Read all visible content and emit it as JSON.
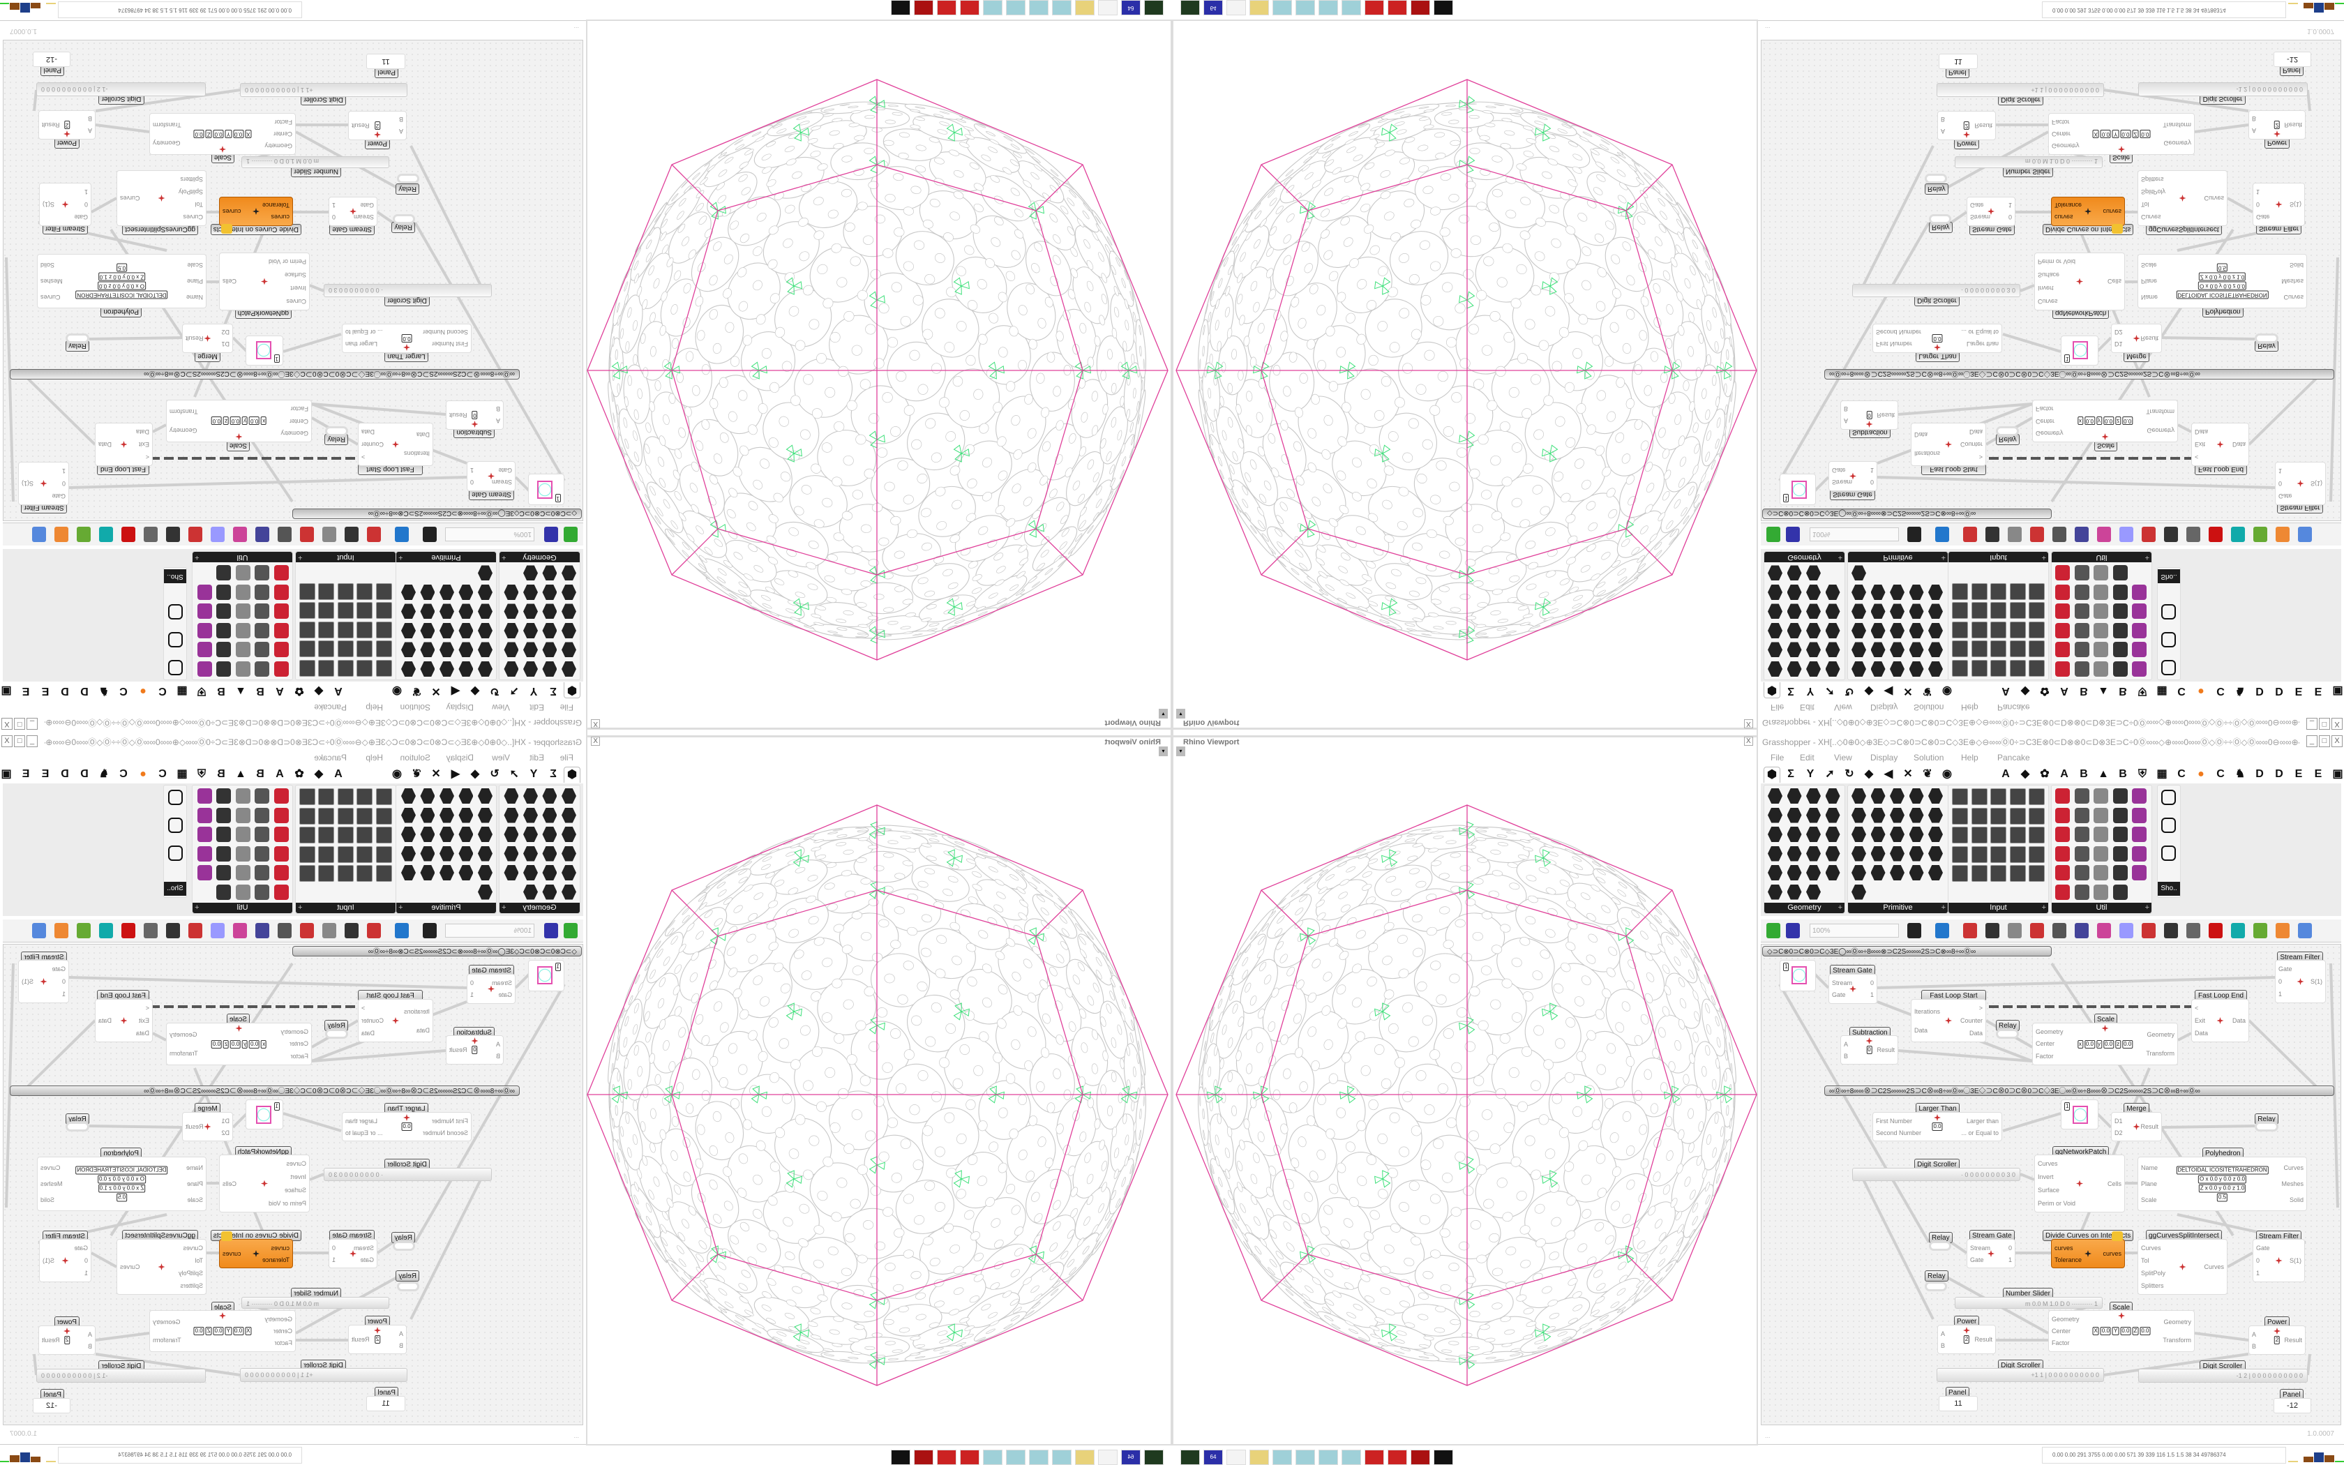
{
  "viewport": {
    "title": "Rhino Viewport",
    "close": "X",
    "dropdown": "▾"
  },
  "colors": {
    "polyhedron_edges": "#e0409a",
    "packing_circles": "#c8c8c8",
    "packing_gaps": "#3ee07a",
    "selected_component": "#f39a2e",
    "wires": "#cfcfcf"
  },
  "taskbar": {
    "icons": [
      {
        "name": "monitor-app-icon",
        "color": "#1f3a1f",
        "label": ""
      },
      {
        "name": "floppy-64-icon",
        "color": "#2b2fa8",
        "label": "64"
      },
      {
        "name": "blank-app-icon",
        "color": "#f4f4f4",
        "label": ""
      },
      {
        "name": "folder-icon",
        "color": "#e8d27a",
        "label": ""
      },
      {
        "name": "notepad-icon",
        "color": "#9fd0d8",
        "label": ""
      },
      {
        "name": "notepad-icon",
        "color": "#9fd0d8",
        "label": ""
      },
      {
        "name": "notepad-icon",
        "color": "#9fd0d8",
        "label": ""
      },
      {
        "name": "notepad-icon",
        "color": "#9fd0d8",
        "label": ""
      },
      {
        "name": "red-gear-icon",
        "color": "#cc2222",
        "label": ""
      },
      {
        "name": "red-gear-icon",
        "color": "#cc2222",
        "label": ""
      },
      {
        "name": "red-sys-icon",
        "color": "#aa1111",
        "label": ""
      },
      {
        "name": "badge-icon",
        "color": "#111111",
        "label": ""
      }
    ]
  },
  "grasshopper": {
    "title": "Grasshopper - XH[..◇0⊕0◇⊕3E◇⊃C⊗0⊃C⊗0⊃C◇3E⊕◇⊖∞∞Ⓞ0÷⊃C3E⊗0⊂D⊗⊗0⊂D⊗3E⊃C÷0Ⓞ∞∞◇⊕∞∞0∞∞Ⓞ◇Ⓞ÷÷Ⓞ◇Ⓞ∞∞0⊖∞∞⊕◇⊖∞∞Ⓞ0÷⊃C3E⊗0⊂D⊗⊂D..",
    "window_buttons": [
      "_",
      "□",
      "X"
    ],
    "menu": [
      "File",
      "Edit",
      "View",
      "Display",
      "Solution",
      "Help",
      "Pancake"
    ],
    "tabs": [
      "⬢",
      "Σ",
      "Y",
      "➚",
      "↻",
      "◆",
      "◀",
      "✕",
      "❦",
      "◉",
      "A",
      "◆",
      "✿",
      "A",
      "B",
      "▲",
      "B",
      "⛨",
      "▦",
      "C",
      "●",
      "C",
      "♞",
      "D",
      "D",
      "E",
      "E",
      "▣"
    ],
    "ribbon": [
      {
        "label": "Geometry",
        "icons": [
          "point",
          "line",
          "vector",
          "spiral",
          "cross",
          "plane",
          "box",
          "field",
          "arrow",
          "rhombus",
          "abc",
          "wave",
          "circle",
          "cube",
          "lock",
          "cloud",
          "hook",
          "diamond",
          "map",
          "gear",
          "ring",
          "mesh",
          "magnet"
        ]
      },
      {
        "label": "Primitive",
        "icons": [
          "drop",
          "bug",
          "grid",
          "curve",
          "path",
          "star",
          "fan",
          "clock",
          "doc",
          "sync",
          "scissor",
          "uc",
          "hatch",
          "lock",
          "seven",
          "hash",
          "tree",
          "circle",
          "zero-one",
          "hash",
          "cj",
          "file",
          "A",
          "ID",
          "sphere",
          "wave"
        ]
      },
      {
        "label": "Input",
        "icons": [
          "import",
          "square",
          "prism",
          "3dm",
          "co",
          "swatch",
          "gumball",
          "t-brush",
          "xyz",
          "toggle",
          "gradient",
          "colorwheel",
          "img",
          "sphere",
          "checker",
          "graph",
          "pdb",
          "spark",
          "calendar",
          "target",
          "shp",
          "list",
          "clock",
          "rainbow",
          "id-tag"
        ]
      },
      {
        "label": "Util",
        "icons": [
          "cherry",
          "magnet",
          "arrow",
          "cj",
          "A",
          "play",
          "rec",
          "search",
          "spiral",
          "flask",
          "axes",
          "pencil",
          "compass",
          "seven",
          "flask",
          "tree",
          "y-box",
          "egg",
          "key",
          "fx",
          "blob",
          "swirl",
          "pr",
          "zero-one",
          "palette",
          "abc",
          "arrow-right",
          "gauge",
          "x"
        ]
      }
    ],
    "shortcut_label": "Sho..",
    "toolbar": {
      "zoom": "100%",
      "icons": [
        "open-file-icon",
        "save-icon",
        "zoom-extents-icon",
        "preview-eye-icon",
        "brush-icon",
        "clip-icon",
        "email-icon",
        "gha-icon",
        "display-icon",
        "search-icon",
        "package-icon",
        "bulb-icon",
        "wires-icon",
        "bell-icon",
        "capsule-icon",
        "red-shape-icon",
        "teal-icon",
        "green-icon",
        "orange-sphere-icon",
        "blue-sphere-icon"
      ]
    },
    "groups": [
      "◇⊃C⊗0⊃C⊗0⊃C◇3E◯∞Ⓞ∞÷8∞∞⊗⊃C2S∞∞∞2S⊃C⊗∞8÷∞Ⓞ∞",
      "∞Ⓞ∞÷8∞∞⊗⊃C2S∞∞∞2S⊃C⊗∞8÷∞Ⓞ∞◯3E◇⊃C⊗0⊃C⊗0⊃C◇3E◯∞Ⓞ∞÷8∞∞⊗⊃C2S∞∞∞2S⊃C⊗∞8÷∞Ⓞ∞"
    ],
    "components": [
      {
        "title": "",
        "kind": "swatch",
        "value": "1"
      },
      {
        "title": "Stream Gate",
        "inputs": [
          "Stream",
          "Gate"
        ],
        "outputs": [
          "0",
          "1"
        ]
      },
      {
        "title": "Fast Loop Start",
        "inputs": [
          "Iterations",
          "Data"
        ],
        "outputs": [
          ">",
          "Counter",
          "Data"
        ]
      },
      {
        "title": "Relay",
        "kind": "relay"
      },
      {
        "title": "Subtraction",
        "inputs": [
          "A",
          "B"
        ],
        "outputs": [
          "Result"
        ],
        "fields": [
          "0"
        ]
      },
      {
        "title": "Scale",
        "inputs": [
          "Geometry",
          "Center",
          "Factor"
        ],
        "outputs": [
          "Geometry",
          "Transform"
        ],
        "fields": [
          "x",
          "0.0",
          "y",
          "0.0",
          "z",
          "0.0"
        ]
      },
      {
        "title": "Fast Loop End",
        "inputs": [
          "<",
          "Exit",
          "Data"
        ],
        "outputs": [
          "Data"
        ]
      },
      {
        "title": "Stream Filter",
        "inputs": [
          "Gate",
          "0",
          "1"
        ],
        "outputs": [
          "S(1)"
        ]
      },
      {
        "title": "Larger Than",
        "inputs": [
          "First Number",
          "Second Number"
        ],
        "outputs": [
          "Larger than",
          "... or Equal to"
        ],
        "fields": [
          "0.0"
        ]
      },
      {
        "title": "",
        "kind": "swatch",
        "value": "1"
      },
      {
        "title": "Merge",
        "inputs": [
          "D1",
          "D2"
        ],
        "outputs": [
          "Result"
        ]
      },
      {
        "title": "Relay",
        "kind": "relay"
      },
      {
        "title": "ggNetworkPatch",
        "inputs": [
          "Curves",
          "Invert",
          "Surface",
          "Perim or Void"
        ],
        "outputs": [
          "Cells"
        ]
      },
      {
        "title": "Polyhedron",
        "inputs": [
          "Name",
          "Plane",
          "Scale"
        ],
        "outputs": [
          "Curves",
          "Meshes",
          "Solid"
        ],
        "fields": [
          "DELTOIDAL ICOSITETRAHEDRON",
          "O x 0.0 y 0.0 z 0.0",
          "Z x 0.0 y 0.0 z 1.0",
          "0.5"
        ]
      },
      {
        "title": "Digit Scroller",
        "kind": "slider",
        "value": "· 0 0 0 0 0 0 0 0 3 0"
      },
      {
        "title": "Relay",
        "kind": "relay"
      },
      {
        "title": "Stream Gate",
        "inputs": [
          "Stream",
          "Gate"
        ],
        "outputs": [
          "0",
          "1"
        ]
      },
      {
        "title": "Divide Curves on Intersects",
        "inputs": [
          "curves",
          "Tolerance"
        ],
        "outputs": [
          "curves"
        ],
        "selected": true
      },
      {
        "title": "ggCurvesSplitIntersect",
        "inputs": [
          "Curves",
          "Tol",
          "SplitPoly",
          "Splitters"
        ],
        "outputs": [
          "Curves"
        ]
      },
      {
        "title": "Stream Filter",
        "inputs": [
          "Gate",
          "0",
          "1"
        ],
        "outputs": [
          "S(1)"
        ]
      },
      {
        "title": "Relay",
        "kind": "relay"
      },
      {
        "title": "Number Slider",
        "kind": "slider",
        "value": "m 0.0  M 1.0  D 0  ·········· 1"
      },
      {
        "title": "Scale",
        "inputs": [
          "Geometry",
          "Center",
          "Factor"
        ],
        "outputs": [
          "Geometry",
          "Transform"
        ],
        "fields": [
          "X",
          "0.0",
          "Y",
          "0.0",
          "Z",
          "0.0"
        ]
      },
      {
        "title": "Power",
        "inputs": [
          "A",
          "B"
        ],
        "outputs": [
          "Result"
        ],
        "fields": [
          "2"
        ]
      },
      {
        "title": "Power",
        "inputs": [
          "A",
          "B"
        ],
        "outputs": [
          "Result"
        ],
        "fields": [
          "2"
        ]
      },
      {
        "title": "Digit Scroller",
        "kind": "slider",
        "value": "+1 1 | 0 0 0 0 0 0 0 0 0 0"
      },
      {
        "title": "Digit Scroller",
        "kind": "slider",
        "value": "-1 2 | 0 0 0 0 0 0 0 0 0 0"
      },
      {
        "title": "Panel",
        "kind": "panel",
        "value": "11"
      },
      {
        "title": "Panel",
        "kind": "panel",
        "value": "-12"
      }
    ],
    "status": {
      "left": "...",
      "version": "1.0.0007"
    },
    "stats": "0.00 0.00 291 3755 0.00 0.00 571  39  339  116  1.5  1.5  38  34  49786374"
  }
}
